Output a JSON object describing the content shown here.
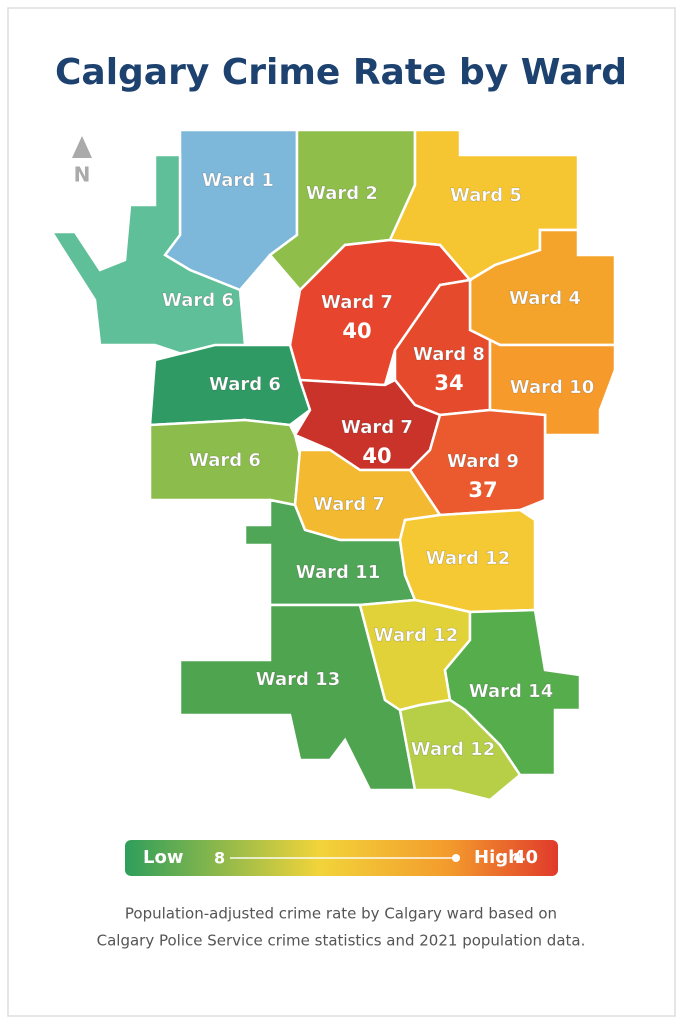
{
  "title": "Calgary Crime Rate by Ward",
  "compass": "N",
  "regions": [
    {
      "label": "Ward 1",
      "color": "#7db8da"
    },
    {
      "label": "Ward 2",
      "color": "#8fbf4a"
    },
    {
      "label": "Ward 5",
      "color": "#f6c632"
    },
    {
      "label": "Ward 6",
      "color": "#5fbf98"
    },
    {
      "label": "Ward 4",
      "color": "#f5a42b"
    },
    {
      "label": "Ward 7",
      "value": 40,
      "color": "#e8452e"
    },
    {
      "label": "Ward 8",
      "value": 34,
      "color": "#e54a2d"
    },
    {
      "label": "Ward 10",
      "color": "#f79a2c"
    },
    {
      "label": "Ward 6",
      "color": "#2f9a63"
    },
    {
      "label": "Ward 7",
      "value": 40,
      "color": "#c9332a"
    },
    {
      "label": "Ward 9",
      "value": 37,
      "color": "#ea5a2e"
    },
    {
      "label": "Ward 6",
      "color": "#8cbc4c"
    },
    {
      "label": "Ward 7",
      "color": "#f3b930"
    },
    {
      "label": "Ward 11",
      "color": "#4fa656"
    },
    {
      "label": "Ward 12",
      "color": "#f5c933"
    },
    {
      "label": "Ward 13",
      "color": "#4fa44f"
    },
    {
      "label": "Ward 12",
      "color": "#e2d23a"
    },
    {
      "label": "Ward 14",
      "color": "#55ad4c"
    },
    {
      "label": "Ward 12",
      "color": "#b6cf46"
    }
  ],
  "legend": {
    "low_label": "Low",
    "min": 8,
    "high_label": "High",
    "max": 40
  },
  "caption": [
    "Population-adjusted crime rate by Calgary ward based on",
    "Calgary Police Service crime statistics and 2021 population data."
  ]
}
